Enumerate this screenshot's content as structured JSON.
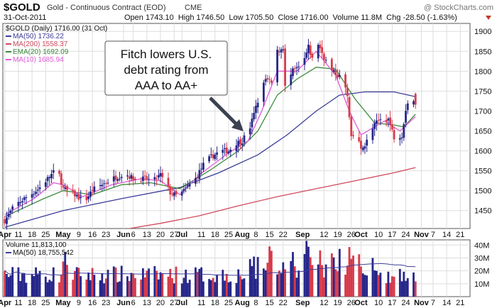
{
  "header": {
    "symbol": "$GOLD",
    "name": "Gold - Continuous Contract (EOD)",
    "exchange": "CME",
    "date": "31-Oct-2011",
    "quote_text": "Open 1743.10  High 1746.50  Low 1705.50  Close 1716.00  Volume 11.8M  Chg -28.50 (-1.63%)",
    "watermark": "@ StockCharts.com",
    "chg_arrow_color": "#c0392b"
  },
  "price_panel": {
    "legend_title": "$GOLD (Daily) 1716.00 (31 Oct)",
    "legend": [
      {
        "label": "MA(50) 1736.22",
        "color": "#3d3d99"
      },
      {
        "label": "MA(200) 1558.37",
        "color": "#d04a5e"
      },
      {
        "label": "EMA(20) 1692.09",
        "color": "#3c8a3c"
      },
      {
        "label": "MA(10) 1685.94",
        "color": "#e05ad8"
      }
    ],
    "annotation": [
      "Fitch lowers U.S.",
      "debt rating from",
      "AAA to AA+"
    ]
  },
  "volume_panel": {
    "legend_title": "Volume 11,813,100",
    "legend": [
      {
        "label": "MA(50) 18,755,542",
        "color": "#3d3d99"
      }
    ]
  },
  "x_axis": {
    "ticks": [
      {
        "label": "Apr",
        "d": 0,
        "major": true
      },
      {
        "label": "11",
        "d": 7
      },
      {
        "label": "18",
        "d": 14
      },
      {
        "label": "25",
        "d": 21
      },
      {
        "label": "May",
        "d": 30,
        "major": true
      },
      {
        "label": "9",
        "d": 38
      },
      {
        "label": "16",
        "d": 45
      },
      {
        "label": "23",
        "d": 52
      },
      {
        "label": "Jun",
        "d": 61,
        "major": true
      },
      {
        "label": "6",
        "d": 66
      },
      {
        "label": "13",
        "d": 73
      },
      {
        "label": "20",
        "d": 80
      },
      {
        "label": "27",
        "d": 87
      },
      {
        "label": "Jul",
        "d": 91,
        "major": true
      },
      {
        "label": "11",
        "d": 101
      },
      {
        "label": "18",
        "d": 108
      },
      {
        "label": "25",
        "d": 115
      },
      {
        "label": "Aug",
        "d": 122,
        "major": true
      },
      {
        "label": "8",
        "d": 129
      },
      {
        "label": "15",
        "d": 136
      },
      {
        "label": "22",
        "d": 143
      },
      {
        "label": "Sep",
        "d": 153,
        "major": true
      },
      {
        "label": "12",
        "d": 164
      },
      {
        "label": "19",
        "d": 171
      },
      {
        "label": "26",
        "d": 178
      },
      {
        "label": "Oct",
        "d": 183,
        "major": true
      },
      {
        "label": "10",
        "d": 192
      },
      {
        "label": "17",
        "d": 199
      },
      {
        "label": "24",
        "d": 206
      },
      {
        "label": "Nov",
        "d": 214,
        "major": true
      },
      {
        "label": "7",
        "d": 220
      },
      {
        "label": "14",
        "d": 227
      },
      {
        "label": "21",
        "d": 234
      }
    ]
  },
  "chart_data": {
    "type": "candlestick",
    "price_ylim": [
      1405,
      1920
    ],
    "price_ticks": [
      1450,
      1500,
      1550,
      1600,
      1650,
      1700,
      1750,
      1800,
      1850,
      1900
    ],
    "volume_ylim": [
      0,
      44
    ],
    "volume_ticks": [
      10,
      20,
      30,
      40
    ],
    "volume_unit": "M",
    "x_range": [
      -1,
      239
    ],
    "colors": {
      "up": "#26268a",
      "down": "#d63a4a",
      "grid": "#dddddd"
    },
    "anchors": [
      [
        0,
        1425
      ],
      [
        5,
        1462
      ],
      [
        10,
        1480
      ],
      [
        17,
        1503
      ],
      [
        22,
        1530
      ],
      [
        27,
        1556
      ],
      [
        30,
        1505
      ],
      [
        36,
        1490
      ],
      [
        41,
        1472
      ],
      [
        45,
        1502
      ],
      [
        52,
        1521
      ],
      [
        57,
        1534
      ],
      [
        62,
        1542
      ],
      [
        67,
        1528
      ],
      [
        72,
        1530
      ],
      [
        76,
        1523
      ],
      [
        80,
        1540
      ],
      [
        85,
        1495
      ],
      [
        89,
        1485
      ],
      [
        94,
        1510
      ],
      [
        98,
        1530
      ],
      [
        102,
        1565
      ],
      [
        106,
        1585
      ],
      [
        111,
        1600
      ],
      [
        115,
        1600
      ],
      [
        119,
        1620
      ],
      [
        122,
        1625
      ],
      [
        126,
        1660
      ],
      [
        130,
        1725
      ],
      [
        134,
        1780
      ],
      [
        137,
        1770
      ],
      [
        139,
        1845
      ],
      [
        143,
        1860
      ],
      [
        144,
        1760
      ],
      [
        148,
        1800
      ],
      [
        153,
        1815
      ],
      [
        156,
        1860
      ],
      [
        158,
        1830
      ],
      [
        160,
        1880
      ],
      [
        164,
        1835
      ],
      [
        168,
        1800
      ],
      [
        171,
        1790
      ],
      [
        174,
        1780
      ],
      [
        176,
        1735
      ],
      [
        178,
        1630
      ],
      [
        181,
        1650
      ],
      [
        183,
        1600
      ],
      [
        186,
        1625
      ],
      [
        190,
        1665
      ],
      [
        193,
        1680
      ],
      [
        197,
        1680
      ],
      [
        200,
        1635
      ],
      [
        204,
        1640
      ],
      [
        206,
        1705
      ],
      [
        208,
        1735
      ],
      [
        211,
        1722
      ]
    ],
    "ma_lines": [
      {
        "name": "MA(50)",
        "color": "#3d3d99",
        "points": [
          [
            0,
            1408
          ],
          [
            30,
            1450
          ],
          [
            60,
            1480
          ],
          [
            90,
            1508
          ],
          [
            110,
            1545
          ],
          [
            130,
            1590
          ],
          [
            145,
            1640
          ],
          [
            160,
            1700
          ],
          [
            172,
            1740
          ],
          [
            185,
            1748
          ],
          [
            200,
            1748
          ],
          [
            211,
            1736
          ]
        ]
      },
      {
        "name": "MA(200)",
        "color": "#d04a5e",
        "points": [
          [
            64,
            1405
          ],
          [
            80,
            1418
          ],
          [
            100,
            1437
          ],
          [
            120,
            1462
          ],
          [
            140,
            1485
          ],
          [
            160,
            1505
          ],
          [
            180,
            1525
          ],
          [
            200,
            1545
          ],
          [
            211,
            1558
          ]
        ]
      },
      {
        "name": "EMA(20)",
        "color": "#3c8a3c",
        "points": [
          [
            0,
            1435
          ],
          [
            20,
            1480
          ],
          [
            30,
            1500
          ],
          [
            45,
            1490
          ],
          [
            60,
            1515
          ],
          [
            75,
            1520
          ],
          [
            90,
            1505
          ],
          [
            105,
            1550
          ],
          [
            120,
            1600
          ],
          [
            130,
            1650
          ],
          [
            140,
            1740
          ],
          [
            150,
            1780
          ],
          [
            160,
            1810
          ],
          [
            170,
            1805
          ],
          [
            180,
            1730
          ],
          [
            190,
            1670
          ],
          [
            200,
            1665
          ],
          [
            205,
            1660
          ],
          [
            211,
            1692
          ]
        ]
      },
      {
        "name": "MA(10)",
        "color": "#e05ad8",
        "points": [
          [
            0,
            1440
          ],
          [
            15,
            1480
          ],
          [
            25,
            1520
          ],
          [
            30,
            1515
          ],
          [
            40,
            1485
          ],
          [
            55,
            1515
          ],
          [
            70,
            1530
          ],
          [
            80,
            1525
          ],
          [
            90,
            1490
          ],
          [
            100,
            1540
          ],
          [
            115,
            1595
          ],
          [
            125,
            1625
          ],
          [
            132,
            1700
          ],
          [
            140,
            1800
          ],
          [
            150,
            1800
          ],
          [
            160,
            1850
          ],
          [
            170,
            1790
          ],
          [
            177,
            1700
          ],
          [
            183,
            1640
          ],
          [
            195,
            1675
          ],
          [
            203,
            1650
          ],
          [
            211,
            1686
          ]
        ]
      }
    ],
    "last_bar": {
      "date": "31-Oct-2011",
      "open": 1743.1,
      "high": 1746.5,
      "low": 1705.5,
      "close": 1716.0,
      "volume": 11813100
    },
    "volume_ma50_last": 18755542
  }
}
